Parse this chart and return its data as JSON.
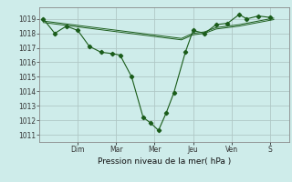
{
  "background_color": "#ceecea",
  "grid_color": "#b0c8c6",
  "line_color": "#1a5c1a",
  "marker_color": "#1a5c1a",
  "xlabel": "Pression niveau de la mer( hPa )",
  "ylim": [
    1010.5,
    1019.8
  ],
  "yticks": [
    1011,
    1012,
    1013,
    1014,
    1015,
    1016,
    1017,
    1018,
    1019
  ],
  "day_labels": [
    "Dim",
    "Mar",
    "Mer",
    "Jeu",
    "Ven",
    "S"
  ],
  "day_positions": [
    2,
    4,
    6,
    8,
    10,
    12
  ],
  "xlim": [
    0,
    13
  ],
  "series1_x": [
    0.2,
    0.8,
    1.4,
    2.0,
    2.6,
    3.2,
    3.8,
    4.2,
    4.8,
    5.4,
    5.8,
    6.2,
    6.6,
    7.0,
    7.6,
    8.0,
    8.6,
    9.2,
    9.8,
    10.4,
    10.8,
    11.4,
    12.0
  ],
  "series1_y": [
    1019.0,
    1018.0,
    1018.5,
    1018.2,
    1017.1,
    1016.7,
    1016.6,
    1016.5,
    1015.0,
    1012.2,
    1011.8,
    1011.3,
    1012.5,
    1013.9,
    1016.7,
    1018.2,
    1018.0,
    1018.6,
    1018.7,
    1019.3,
    1019.0,
    1019.2,
    1019.1
  ],
  "series2_x": [
    0.2,
    0.8,
    1.4,
    2.0,
    2.6,
    3.2,
    3.8,
    4.4,
    5.0,
    5.6,
    6.2,
    6.8,
    7.4,
    8.0,
    8.6,
    9.2,
    9.8,
    10.4,
    11.0,
    11.6,
    12.2
  ],
  "series2_y": [
    1018.85,
    1018.75,
    1018.65,
    1018.55,
    1018.45,
    1018.35,
    1018.25,
    1018.15,
    1018.05,
    1017.95,
    1017.85,
    1017.75,
    1017.65,
    1018.0,
    1018.1,
    1018.4,
    1018.5,
    1018.6,
    1018.75,
    1018.9,
    1019.05
  ],
  "series3_x": [
    0.2,
    0.8,
    1.4,
    2.0,
    2.6,
    3.2,
    3.8,
    4.4,
    5.0,
    5.6,
    6.2,
    6.8,
    7.4,
    8.0,
    8.6,
    9.2,
    9.8,
    10.4,
    11.0,
    11.6,
    12.2
  ],
  "series3_y": [
    1018.75,
    1018.65,
    1018.55,
    1018.45,
    1018.35,
    1018.25,
    1018.15,
    1018.05,
    1017.95,
    1017.85,
    1017.75,
    1017.65,
    1017.55,
    1017.9,
    1018.0,
    1018.3,
    1018.4,
    1018.5,
    1018.65,
    1018.8,
    1018.95
  ]
}
